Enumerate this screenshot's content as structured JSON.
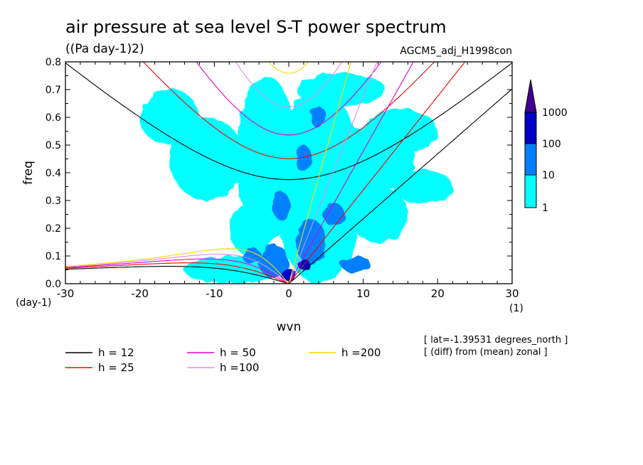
{
  "chart_data": {
    "type": "heatmap",
    "title": "air pressure at sea level S-T power spectrum",
    "subtitle": "((Pa day-1)2)",
    "run_label": "AGCM5_adj_H1998con",
    "xlabel": "wvn",
    "ylabel": "freq",
    "x_unit": "(1)",
    "y_unit": "(day-1)",
    "xlim": [
      -30,
      30
    ],
    "ylim": [
      0,
      0.8
    ],
    "x_ticks": [
      "-30",
      "-20",
      "-10",
      "0",
      "10",
      "20",
      "30"
    ],
    "y_ticks": [
      "0.0",
      "0.1",
      "0.2",
      "0.3",
      "0.4",
      "0.5",
      "0.6",
      "0.7",
      "0.8"
    ],
    "colorbar": {
      "levels": [
        "1",
        "10",
        "100",
        "1000"
      ],
      "colors": [
        "#00ffff",
        "#0080ff",
        "#0000c8",
        "#400090"
      ]
    },
    "field_shading": {
      "description_levels": [
        "1-10",
        "10-100",
        "100-1000"
      ],
      "blobs": [
        {
          "x": -8,
          "y": 0.05,
          "rx": 6,
          "ry": 0.05,
          "level": 0
        },
        {
          "x": -5,
          "y": 0.2,
          "rx": 3,
          "ry": 0.1,
          "level": 0
        },
        {
          "x": -3,
          "y": 0.45,
          "rx": 4,
          "ry": 0.3,
          "level": 0
        },
        {
          "x": 4,
          "y": 0.35,
          "rx": 6,
          "ry": 0.35,
          "level": 0
        },
        {
          "x": 12,
          "y": 0.25,
          "rx": 4,
          "ry": 0.1,
          "level": 0
        },
        {
          "x": 15,
          "y": 0.55,
          "rx": 5,
          "ry": 0.08,
          "level": 0
        },
        {
          "x": 7,
          "y": 0.7,
          "rx": 6,
          "ry": 0.06,
          "level": 0
        },
        {
          "x": -11,
          "y": 0.45,
          "rx": 5,
          "ry": 0.15,
          "level": 0
        },
        {
          "x": 11,
          "y": 0.45,
          "rx": 6,
          "ry": 0.12,
          "level": 0
        },
        {
          "x": -16,
          "y": 0.6,
          "rx": 4,
          "ry": 0.1,
          "level": 0
        },
        {
          "x": 18,
          "y": 0.35,
          "rx": 4,
          "ry": 0.06,
          "level": 0
        },
        {
          "x": -2,
          "y": 0.08,
          "rx": 2,
          "ry": 0.06,
          "level": 1
        },
        {
          "x": 3,
          "y": 0.15,
          "rx": 2,
          "ry": 0.08,
          "level": 1
        },
        {
          "x": -1,
          "y": 0.28,
          "rx": 1.2,
          "ry": 0.05,
          "level": 1
        },
        {
          "x": 2,
          "y": 0.45,
          "rx": 1,
          "ry": 0.05,
          "level": 1
        },
        {
          "x": 4,
          "y": 0.6,
          "rx": 1,
          "ry": 0.04,
          "level": 1
        },
        {
          "x": 6,
          "y": 0.25,
          "rx": 1.5,
          "ry": 0.04,
          "level": 1
        },
        {
          "x": 9,
          "y": 0.07,
          "rx": 2,
          "ry": 0.03,
          "level": 1
        },
        {
          "x": -5,
          "y": 0.1,
          "rx": 1.2,
          "ry": 0.03,
          "level": 1
        },
        {
          "x": 0,
          "y": 0.03,
          "rx": 1,
          "ry": 0.025,
          "level": 2
        },
        {
          "x": 2,
          "y": 0.07,
          "rx": 0.8,
          "ry": 0.02,
          "level": 2
        }
      ]
    },
    "dispersion_curves": {
      "equivalent_depths_m": [
        12,
        25,
        50,
        100,
        200
      ],
      "legend": [
        {
          "label": "h = 12",
          "color": "#000000"
        },
        {
          "label": "h = 25",
          "color": "#ff0000"
        },
        {
          "label": "h = 50",
          "color": "#e000c8"
        },
        {
          "label": "h =100",
          "color": "#d890e8"
        },
        {
          "label": "h =200",
          "color": "#ffd400"
        }
      ]
    },
    "notes": [
      "[ lat=-1.39531 degrees_north ]",
      "[ (diff) from (mean) zonal ]"
    ]
  }
}
